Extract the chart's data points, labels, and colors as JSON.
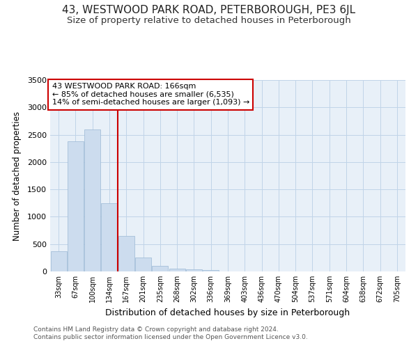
{
  "title_line1": "43, WESTWOOD PARK ROAD, PETERBOROUGH, PE3 6JL",
  "title_line2": "Size of property relative to detached houses in Peterborough",
  "xlabel": "Distribution of detached houses by size in Peterborough",
  "ylabel": "Number of detached properties",
  "footer_line1": "Contains HM Land Registry data © Crown copyright and database right 2024.",
  "footer_line2": "Contains public sector information licensed under the Open Government Licence v3.0.",
  "annotation_line1": "43 WESTWOOD PARK ROAD: 166sqm",
  "annotation_line2": "← 85% of detached houses are smaller (6,535)",
  "annotation_line3": "14% of semi-detached houses are larger (1,093) →",
  "bar_color": "#ccdcee",
  "bar_edge_color": "#9ab8d4",
  "vline_color": "#cc0000",
  "vline_x_index": 4,
  "categories": [
    "33sqm",
    "67sqm",
    "100sqm",
    "134sqm",
    "167sqm",
    "201sqm",
    "235sqm",
    "268sqm",
    "302sqm",
    "336sqm",
    "369sqm",
    "403sqm",
    "436sqm",
    "470sqm",
    "504sqm",
    "537sqm",
    "571sqm",
    "604sqm",
    "638sqm",
    "672sqm",
    "705sqm"
  ],
  "values": [
    375,
    2380,
    2600,
    1250,
    650,
    260,
    105,
    55,
    35,
    20,
    5,
    5,
    0,
    0,
    0,
    0,
    0,
    0,
    0,
    0,
    0
  ],
  "ylim": [
    0,
    3500
  ],
  "yticks": [
    0,
    500,
    1000,
    1500,
    2000,
    2500,
    3000,
    3500
  ],
  "grid_color": "#c0d4e8",
  "bg_color": "#e8f0f8",
  "annotation_box_edge": "#cc0000",
  "title_fontsize": 11,
  "subtitle_fontsize": 9.5
}
